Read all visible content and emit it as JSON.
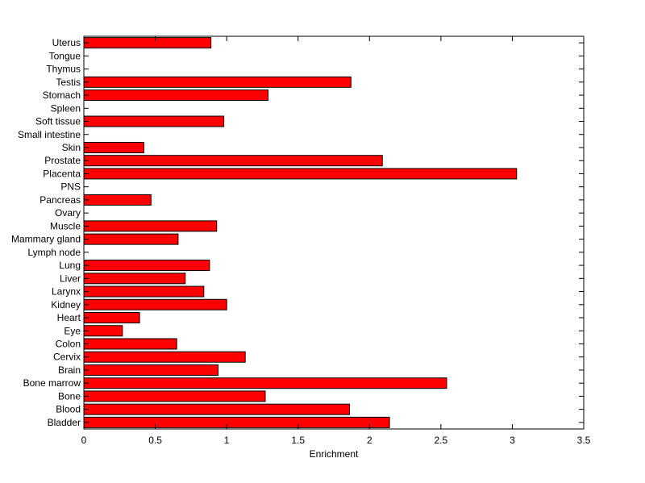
{
  "chart_data": {
    "type": "bar",
    "orientation": "horizontal",
    "title": "",
    "xlabel": "Enrichment",
    "ylabel": "",
    "xlim": [
      0,
      3.5
    ],
    "xticks": [
      "0",
      "0.5",
      "1",
      "1.5",
      "2",
      "2.5",
      "3",
      "3.5"
    ],
    "bar_color": "#ff0000",
    "bar_edge_color": "#000000",
    "grid": false,
    "categories": [
      "Bladder",
      "Blood",
      "Bone",
      "Bone marrow",
      "Brain",
      "Cervix",
      "Colon",
      "Eye",
      "Heart",
      "Kidney",
      "Larynx",
      "Liver",
      "Lung",
      "Lymph node",
      "Mammary gland",
      "Muscle",
      "Ovary",
      "Pancreas",
      "PNS",
      "Placenta",
      "Prostate",
      "Skin",
      "Small intestine",
      "Soft tissue",
      "Spleen",
      "Stomach",
      "Testis",
      "Thymus",
      "Tongue",
      "Uterus"
    ],
    "values": [
      2.14,
      1.86,
      1.27,
      2.54,
      0.94,
      1.13,
      0.65,
      0.27,
      0.39,
      1.0,
      0.84,
      0.71,
      0.88,
      0,
      0.66,
      0.93,
      0,
      0.47,
      0,
      3.03,
      2.09,
      0.42,
      0,
      0.98,
      0,
      1.29,
      1.87,
      0,
      0,
      0.89
    ]
  }
}
